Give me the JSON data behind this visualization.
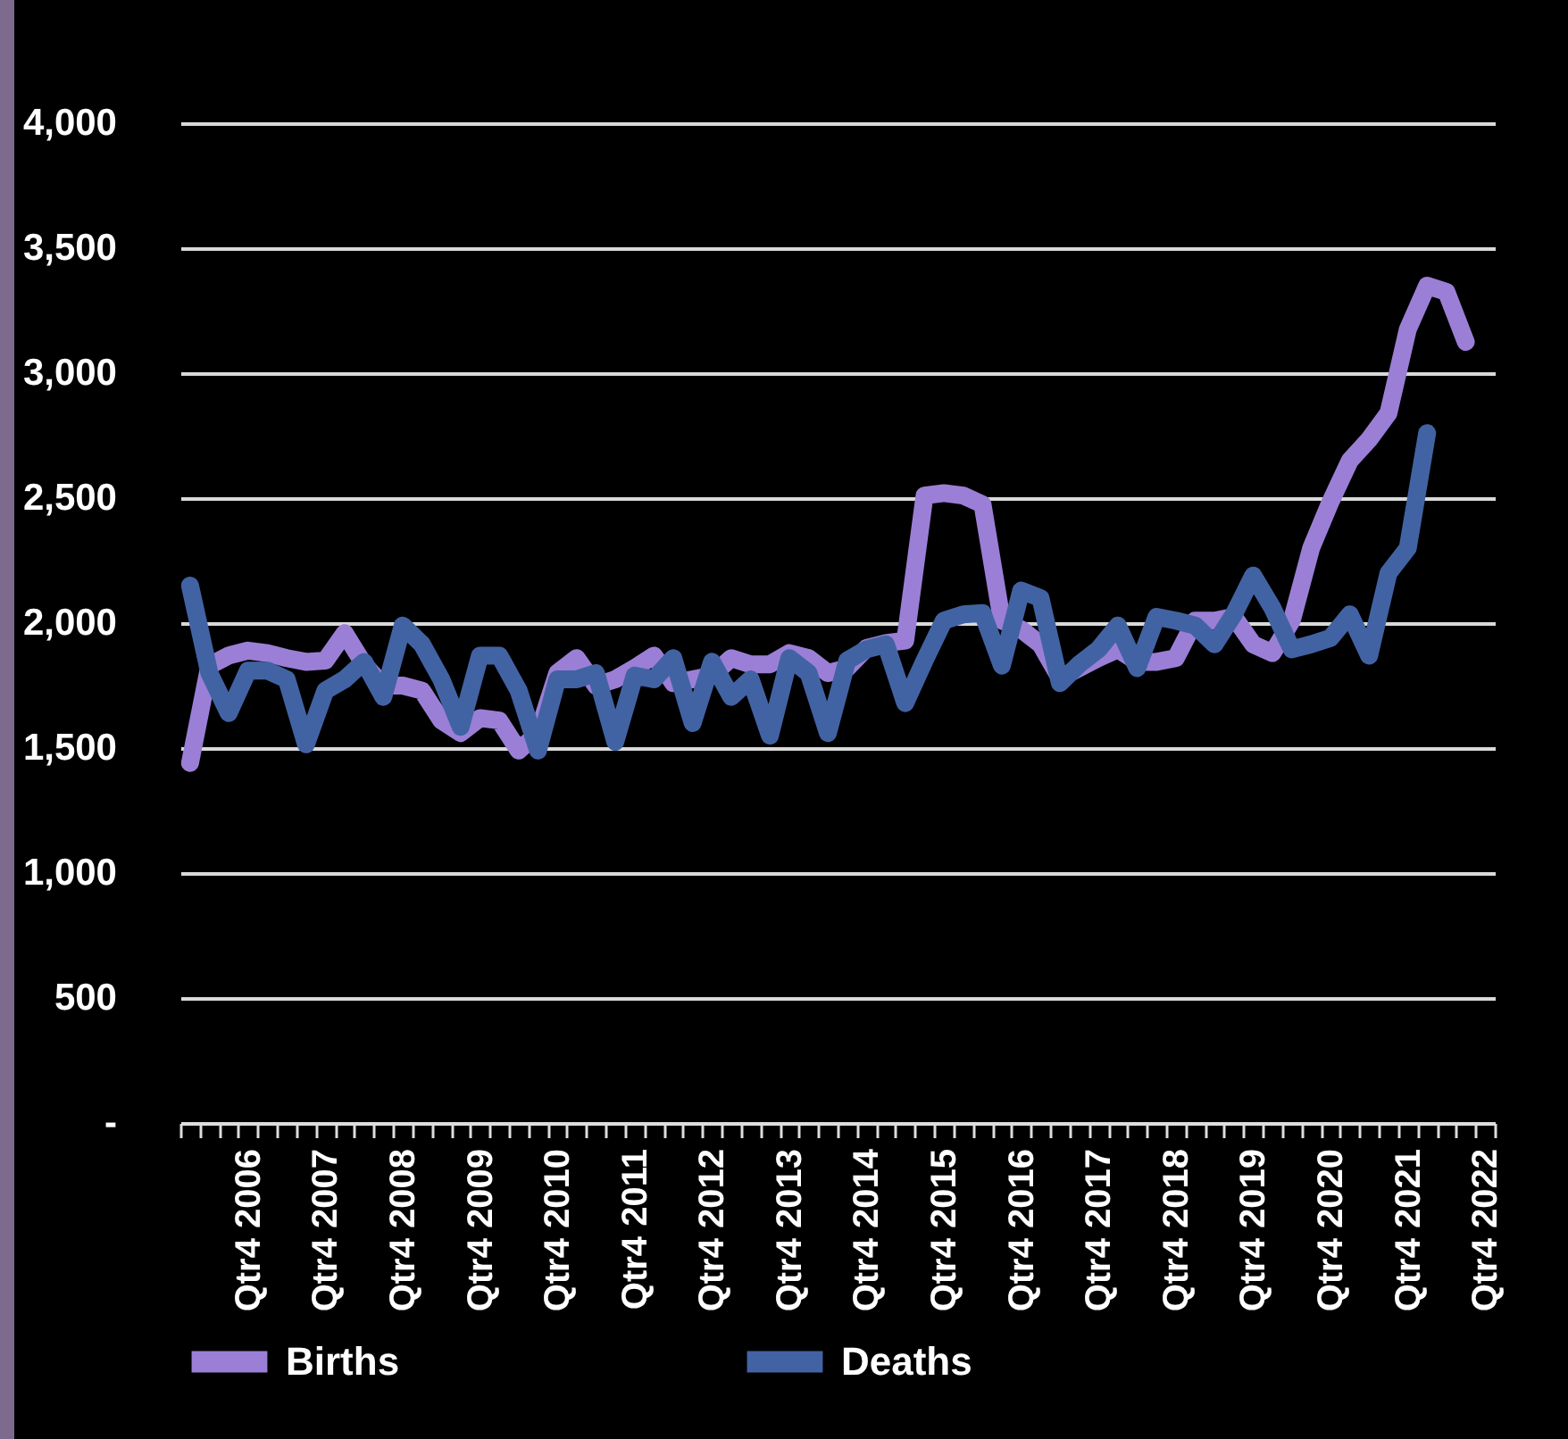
{
  "chart_data": {
    "type": "line",
    "categories": [
      null,
      null,
      null,
      "Qtr4 2006",
      null,
      null,
      null,
      "Qtr4 2007",
      null,
      null,
      null,
      "Qtr4 2008",
      null,
      null,
      null,
      "Qtr4 2009",
      null,
      null,
      null,
      "Qtr4 2010",
      null,
      null,
      null,
      "Qtr4 2011",
      null,
      null,
      null,
      "Qtr4 2012",
      null,
      null,
      null,
      "Qtr4 2013",
      null,
      null,
      null,
      "Qtr4 2014",
      null,
      null,
      null,
      "Qtr4 2015",
      null,
      null,
      null,
      "Qtr4 2016",
      null,
      null,
      null,
      "Qtr4 2017",
      null,
      null,
      null,
      "Qtr4 2018",
      null,
      null,
      null,
      "Qtr4 2019",
      null,
      null,
      null,
      "Qtr4 2020",
      null,
      null,
      null,
      "Qtr4 2021",
      null,
      null,
      null,
      "Qtr4 2022"
    ],
    "series": [
      {
        "name": "Births",
        "color": "#9b7fd6",
        "values": [
          1440,
          1830,
          1870,
          1890,
          1880,
          1860,
          1845,
          1850,
          1960,
          1835,
          1750,
          1750,
          1730,
          1610,
          1560,
          1620,
          1610,
          1490,
          1560,
          1800,
          1860,
          1750,
          1775,
          1820,
          1870,
          1760,
          1775,
          1790,
          1860,
          1835,
          1835,
          1880,
          1860,
          1800,
          1820,
          1900,
          1920,
          1930,
          2510,
          2520,
          2510,
          2475,
          2010,
          1975,
          1915,
          1780,
          1820,
          1860,
          1895,
          1845,
          1845,
          1860,
          2010,
          2010,
          2025,
          1915,
          1880,
          2010,
          2300,
          2485,
          2650,
          2735,
          2840,
          3175,
          3350,
          3325,
          3125,
          null
        ]
      },
      {
        "name": "Deaths",
        "color": "#4263a3",
        "values": [
          2150,
          1800,
          1640,
          1810,
          1810,
          1775,
          1515,
          1730,
          1775,
          1845,
          1705,
          1990,
          1915,
          1775,
          1585,
          1870,
          1870,
          1730,
          1490,
          1775,
          1775,
          1800,
          1525,
          1790,
          1775,
          1860,
          1600,
          1845,
          1705,
          1775,
          1550,
          1860,
          1800,
          1560,
          1850,
          1895,
          1915,
          1680,
          1850,
          2010,
          2035,
          2040,
          1830,
          2130,
          2100,
          1760,
          1835,
          1895,
          1990,
          1820,
          2025,
          2010,
          1990,
          1915,
          2035,
          2190,
          2060,
          1895,
          1915,
          1940,
          2035,
          1870,
          2200,
          2300,
          2760,
          null,
          null,
          null
        ]
      }
    ],
    "ylim": [
      0,
      4000
    ],
    "yticks": [
      {
        "value": 0,
        "label": "-"
      },
      {
        "value": 500,
        "label": "500"
      },
      {
        "value": 1000,
        "label": "1,000"
      },
      {
        "value": 1500,
        "label": "1,500"
      },
      {
        "value": 2000,
        "label": "2,000"
      },
      {
        "value": 2500,
        "label": "2,500"
      },
      {
        "value": 3000,
        "label": "3,000"
      },
      {
        "value": 3500,
        "label": "3,500"
      },
      {
        "value": 4000,
        "label": "4,000"
      }
    ],
    "grid": "y",
    "legend": "bottom",
    "marker": "none",
    "line_style": "solid"
  }
}
